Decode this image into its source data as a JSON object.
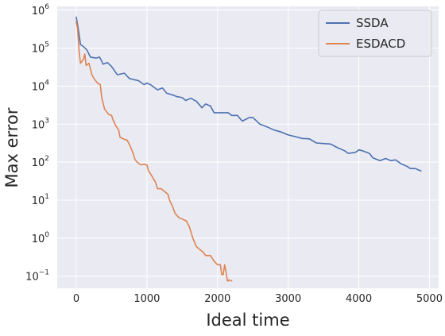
{
  "chart_data": {
    "type": "line",
    "title": "",
    "xlabel": "Ideal time",
    "ylabel": "Max error",
    "xlim": [
      -270,
      5130
    ],
    "ylim_log10": [
      -1.32,
      6.1
    ],
    "yscale": "log",
    "grid": true,
    "background": "#eaeaf2",
    "legend_position": "top-right",
    "x_ticks": [
      {
        "value": 0,
        "label": "0"
      },
      {
        "value": 1000,
        "label": "1000"
      },
      {
        "value": 2000,
        "label": "2000"
      },
      {
        "value": 3000,
        "label": "3000"
      },
      {
        "value": 4000,
        "label": "4000"
      },
      {
        "value": 5000,
        "label": "5000"
      }
    ],
    "y_ticks": [
      {
        "exp": -1,
        "base": "10",
        "power": "−1"
      },
      {
        "exp": 0,
        "base": "10",
        "power": "0"
      },
      {
        "exp": 1,
        "base": "10",
        "power": "1"
      },
      {
        "exp": 2,
        "base": "10",
        "power": "2"
      },
      {
        "exp": 3,
        "base": "10",
        "power": "3"
      },
      {
        "exp": 4,
        "base": "10",
        "power": "4"
      },
      {
        "exp": 5,
        "base": "10",
        "power": "5"
      },
      {
        "exp": 6,
        "base": "10",
        "power": "6"
      }
    ],
    "series": [
      {
        "name": "SSDA",
        "color": "#4c72b0",
        "points": [
          [
            0,
            650000
          ],
          [
            30,
            300000
          ],
          [
            60,
            125000
          ],
          [
            100,
            110000
          ],
          [
            150,
            90000
          ],
          [
            200,
            58000
          ],
          [
            280,
            55000
          ],
          [
            330,
            58000
          ],
          [
            380,
            38000
          ],
          [
            440,
            42000
          ],
          [
            500,
            33000
          ],
          [
            580,
            20000
          ],
          [
            680,
            22000
          ],
          [
            750,
            16000
          ],
          [
            800,
            15000
          ],
          [
            880,
            14000
          ],
          [
            960,
            11000
          ],
          [
            1000,
            12000
          ],
          [
            1050,
            11000
          ],
          [
            1150,
            8000
          ],
          [
            1220,
            9000
          ],
          [
            1280,
            6500
          ],
          [
            1350,
            6000
          ],
          [
            1430,
            5300
          ],
          [
            1500,
            5000
          ],
          [
            1550,
            4200
          ],
          [
            1620,
            4800
          ],
          [
            1700,
            4000
          ],
          [
            1780,
            2700
          ],
          [
            1830,
            3400
          ],
          [
            1900,
            3000
          ],
          [
            1950,
            2000
          ],
          [
            2080,
            2000
          ],
          [
            2150,
            2000
          ],
          [
            2200,
            1700
          ],
          [
            2280,
            1700
          ],
          [
            2350,
            1200
          ],
          [
            2450,
            1500
          ],
          [
            2500,
            1500
          ],
          [
            2600,
            1000
          ],
          [
            2700,
            850
          ],
          [
            2800,
            700
          ],
          [
            2900,
            620
          ],
          [
            3000,
            520
          ],
          [
            3100,
            470
          ],
          [
            3200,
            420
          ],
          [
            3300,
            410
          ],
          [
            3400,
            320
          ],
          [
            3500,
            310
          ],
          [
            3600,
            300
          ],
          [
            3700,
            240
          ],
          [
            3800,
            200
          ],
          [
            3850,
            170
          ],
          [
            3950,
            180
          ],
          [
            4000,
            210
          ],
          [
            4050,
            200
          ],
          [
            4150,
            170
          ],
          [
            4200,
            130
          ],
          [
            4300,
            110
          ],
          [
            4380,
            125
          ],
          [
            4450,
            110
          ],
          [
            4520,
            115
          ],
          [
            4600,
            90
          ],
          [
            4680,
            78
          ],
          [
            4730,
            68
          ],
          [
            4800,
            68
          ],
          [
            4850,
            62
          ],
          [
            4880,
            59
          ]
        ]
      },
      {
        "name": "ESDACD",
        "color": "#dd8452",
        "points": [
          [
            0,
            500000
          ],
          [
            20,
            300000
          ],
          [
            40,
            80000
          ],
          [
            60,
            40000
          ],
          [
            80,
            45000
          ],
          [
            100,
            50000
          ],
          [
            120,
            70000
          ],
          [
            140,
            35000
          ],
          [
            180,
            40000
          ],
          [
            220,
            20000
          ],
          [
            260,
            15000
          ],
          [
            300,
            12000
          ],
          [
            340,
            11000
          ],
          [
            360,
            5000
          ],
          [
            400,
            2500
          ],
          [
            440,
            2000
          ],
          [
            460,
            1800
          ],
          [
            500,
            1700
          ],
          [
            520,
            1300
          ],
          [
            560,
            900
          ],
          [
            600,
            700
          ],
          [
            620,
            450
          ],
          [
            680,
            400
          ],
          [
            720,
            380
          ],
          [
            760,
            270
          ],
          [
            800,
            180
          ],
          [
            830,
            120
          ],
          [
            860,
            100
          ],
          [
            880,
            95
          ],
          [
            900,
            88
          ],
          [
            920,
            85
          ],
          [
            960,
            88
          ],
          [
            1000,
            85
          ],
          [
            1020,
            60
          ],
          [
            1050,
            50
          ],
          [
            1080,
            40
          ],
          [
            1120,
            30
          ],
          [
            1150,
            20
          ],
          [
            1200,
            20
          ],
          [
            1250,
            17
          ],
          [
            1300,
            14
          ],
          [
            1320,
            10
          ],
          [
            1360,
            7
          ],
          [
            1400,
            4.5
          ],
          [
            1450,
            3.5
          ],
          [
            1500,
            3.2
          ],
          [
            1530,
            3.0
          ],
          [
            1560,
            2.8
          ],
          [
            1600,
            2.0
          ],
          [
            1650,
            1.0
          ],
          [
            1700,
            0.6
          ],
          [
            1750,
            0.5
          ],
          [
            1800,
            0.42
          ],
          [
            1830,
            0.35
          ],
          [
            1900,
            0.35
          ],
          [
            1950,
            0.25
          ],
          [
            2000,
            0.2
          ],
          [
            2040,
            0.2
          ],
          [
            2060,
            0.11
          ],
          [
            2080,
            0.11
          ],
          [
            2100,
            0.2
          ],
          [
            2120,
            0.13
          ],
          [
            2140,
            0.075
          ],
          [
            2150,
            0.075
          ],
          [
            2160,
            0.08
          ],
          [
            2200,
            0.075
          ]
        ]
      }
    ]
  }
}
